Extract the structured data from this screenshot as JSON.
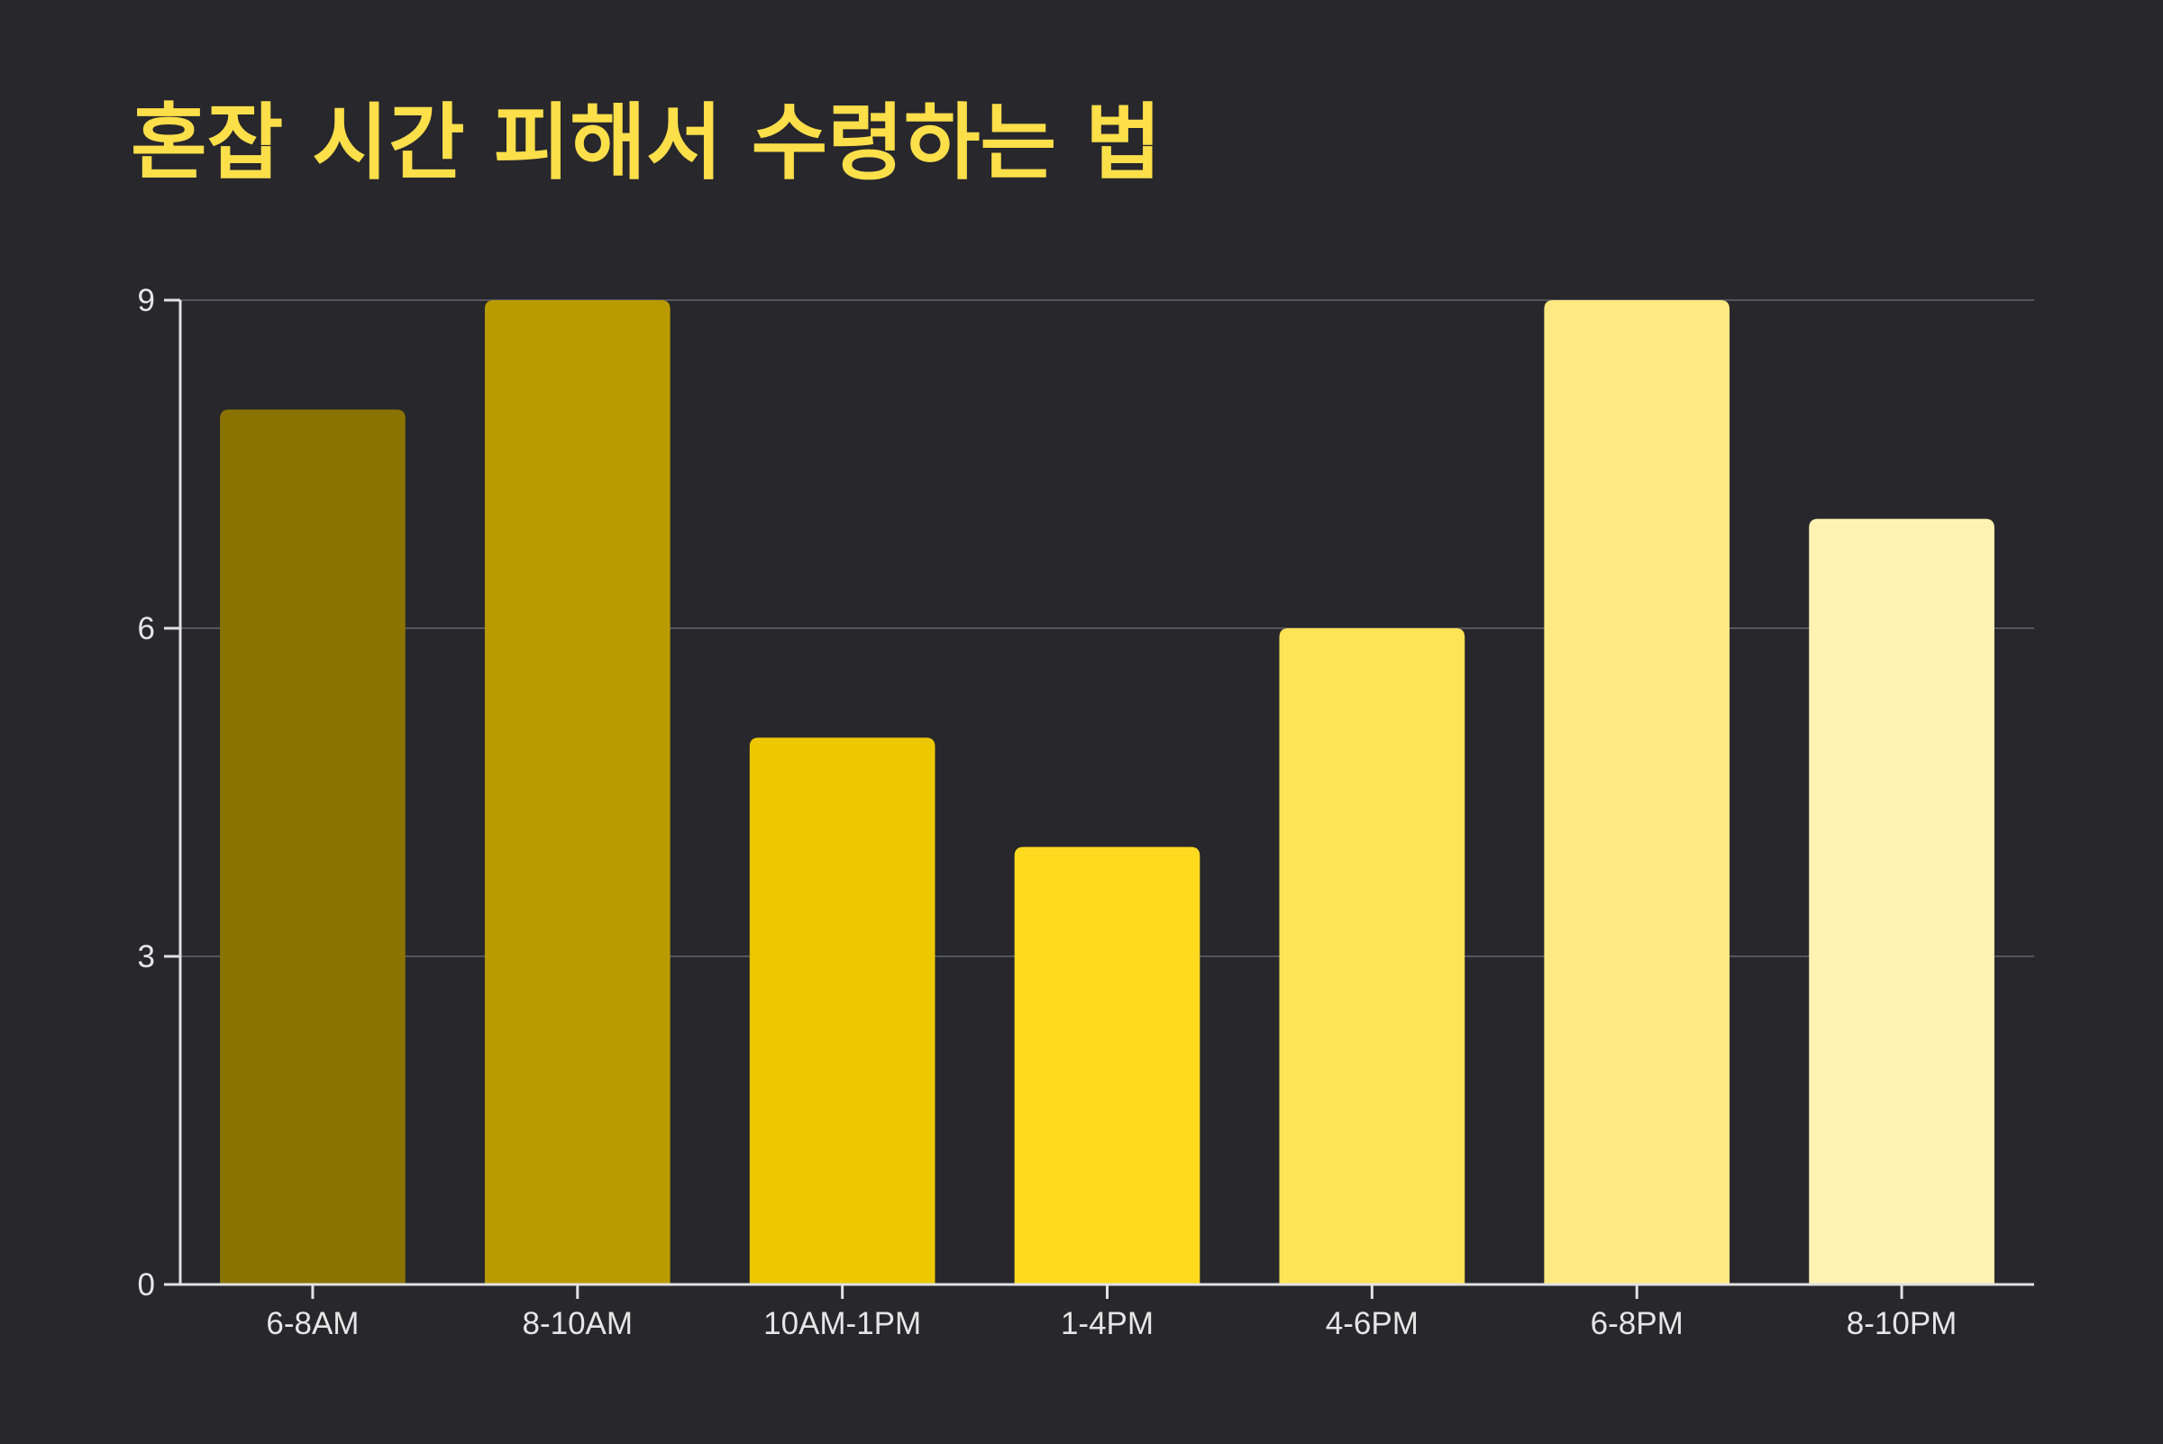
{
  "colors": {
    "background": "#27272c",
    "title": "#fddf4a",
    "gridline": "#55555c",
    "axis": "#e2e2e2",
    "tick_label": "#e6e6e6"
  },
  "chart_data": {
    "type": "bar",
    "title": "혼잡 시간 피해서 수령하는 법",
    "xlabel": "",
    "ylabel": "",
    "categories": [
      "6-8AM",
      "8-10AM",
      "10AM-1PM",
      "1-4PM",
      "4-6PM",
      "6-8PM",
      "8-10PM"
    ],
    "values": [
      8,
      9,
      5,
      4,
      6,
      9,
      7
    ],
    "bar_colors": [
      "#8a7300",
      "#b99b00",
      "#edc700",
      "#ffda1f",
      "#ffe357",
      "#ffe980",
      "#fff2b3"
    ],
    "ylim": [
      0,
      9
    ],
    "yticks": [
      0,
      3,
      6,
      9
    ],
    "grid": true,
    "legend": "none"
  }
}
